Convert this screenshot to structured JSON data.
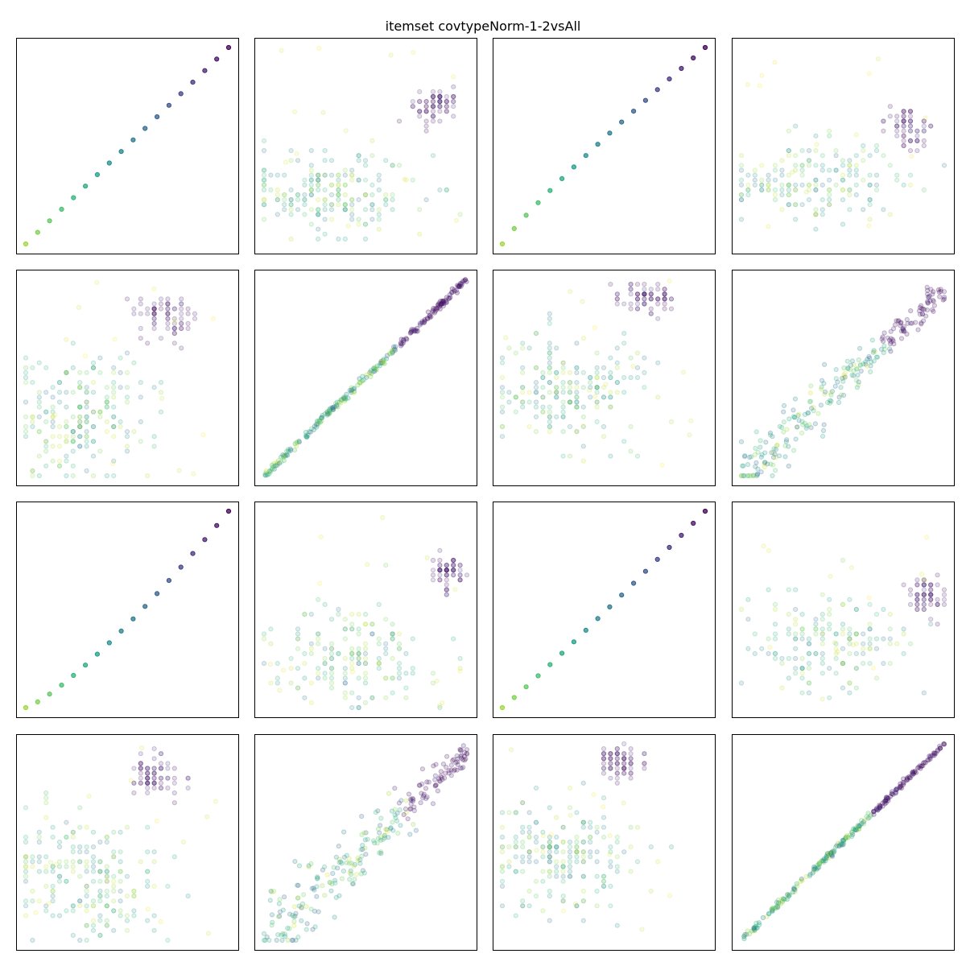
{
  "title": "itemset covtypeNorm-1-2vsAll",
  "chart_data": {
    "type": "scatter",
    "title": "itemset covtypeNorm-1-2vsAll",
    "layout": "4x4 scatter matrix",
    "axes_ticks": "none",
    "colormap": "viridis",
    "point_alpha": 0.15,
    "panels": [
      {
        "id": "r1c1",
        "kind": "diag",
        "x": [
          0,
          1
        ],
        "y": [
          0,
          1
        ],
        "curve": 1.0
      },
      {
        "id": "r1c2",
        "kind": "clusters",
        "clusters": [
          {
            "cx": 0.32,
            "cy": 0.26,
            "sx": 0.22,
            "sy": 0.1,
            "n": 190,
            "cmin": 0.35,
            "cmax": 0.95,
            "mode": "grid"
          },
          {
            "cx": 0.83,
            "cy": 0.71,
            "sx": 0.05,
            "sy": 0.05,
            "n": 70,
            "cmin": 0.0,
            "cmax": 0.15,
            "mode": "grid"
          }
        ]
      },
      {
        "id": "r1c3",
        "kind": "diag",
        "x": [
          0,
          1
        ],
        "y": [
          0,
          1
        ],
        "curve": 0.9
      },
      {
        "id": "r1c4",
        "kind": "clusters",
        "clusters": [
          {
            "cx": 0.36,
            "cy": 0.32,
            "sx": 0.22,
            "sy": 0.1,
            "n": 170,
            "cmin": 0.35,
            "cmax": 0.95,
            "mode": "grid"
          },
          {
            "cx": 0.82,
            "cy": 0.59,
            "sx": 0.06,
            "sy": 0.05,
            "n": 60,
            "cmin": 0.0,
            "cmax": 0.15,
            "mode": "grid"
          }
        ]
      },
      {
        "id": "r2c1",
        "kind": "clusters",
        "clusters": [
          {
            "cx": 0.26,
            "cy": 0.3,
            "sx": 0.17,
            "sy": 0.16,
            "n": 200,
            "cmin": 0.35,
            "cmax": 0.95,
            "mode": "grid"
          },
          {
            "cx": 0.69,
            "cy": 0.81,
            "sx": 0.07,
            "sy": 0.06,
            "n": 70,
            "cmin": 0.0,
            "cmax": 0.15,
            "mode": "grid"
          }
        ]
      },
      {
        "id": "r2c2",
        "kind": "line",
        "spread": 0.01,
        "n": 260
      },
      {
        "id": "r2c3",
        "kind": "clusters",
        "clusters": [
          {
            "cx": 0.32,
            "cy": 0.42,
            "sx": 0.19,
            "sy": 0.14,
            "n": 200,
            "cmin": 0.35,
            "cmax": 0.95,
            "mode": "grid"
          },
          {
            "cx": 0.7,
            "cy": 0.9,
            "sx": 0.07,
            "sy": 0.04,
            "n": 70,
            "cmin": 0.0,
            "cmax": 0.15,
            "mode": "grid"
          }
        ]
      },
      {
        "id": "r2c4",
        "kind": "cloud",
        "spread": 0.06,
        "n": 260
      },
      {
        "id": "r3c1",
        "kind": "diag",
        "x": [
          0,
          1
        ],
        "y": [
          0,
          1
        ],
        "curve": 1.25
      },
      {
        "id": "r3c2",
        "kind": "clusters",
        "clusters": [
          {
            "cx": 0.42,
            "cy": 0.26,
            "sx": 0.2,
            "sy": 0.12,
            "n": 170,
            "cmin": 0.35,
            "cmax": 0.95,
            "mode": "grid"
          },
          {
            "cx": 0.91,
            "cy": 0.7,
            "sx": 0.04,
            "sy": 0.05,
            "n": 60,
            "cmin": 0.0,
            "cmax": 0.15,
            "mode": "grid"
          }
        ]
      },
      {
        "id": "r3c3",
        "kind": "diag",
        "x": [
          0,
          1
        ],
        "y": [
          0,
          1
        ],
        "curve": 1.05
      },
      {
        "id": "r3c4",
        "kind": "clusters",
        "clusters": [
          {
            "cx": 0.42,
            "cy": 0.32,
            "sx": 0.2,
            "sy": 0.12,
            "n": 160,
            "cmin": 0.35,
            "cmax": 0.95,
            "mode": "grid"
          },
          {
            "cx": 0.91,
            "cy": 0.58,
            "sx": 0.04,
            "sy": 0.05,
            "n": 60,
            "cmin": 0.0,
            "cmax": 0.15,
            "mode": "grid"
          }
        ]
      },
      {
        "id": "r4c1",
        "kind": "clusters",
        "clusters": [
          {
            "cx": 0.3,
            "cy": 0.32,
            "sx": 0.19,
            "sy": 0.17,
            "n": 200,
            "cmin": 0.35,
            "cmax": 0.95,
            "mode": "grid"
          },
          {
            "cx": 0.63,
            "cy": 0.84,
            "sx": 0.06,
            "sy": 0.06,
            "n": 70,
            "cmin": 0.0,
            "cmax": 0.15,
            "mode": "grid"
          }
        ]
      },
      {
        "id": "r4c2",
        "kind": "cloud",
        "spread": 0.07,
        "n": 260
      },
      {
        "id": "r4c3",
        "kind": "clusters",
        "clusters": [
          {
            "cx": 0.3,
            "cy": 0.42,
            "sx": 0.19,
            "sy": 0.14,
            "n": 200,
            "cmin": 0.35,
            "cmax": 0.95,
            "mode": "grid"
          },
          {
            "cx": 0.58,
            "cy": 0.9,
            "sx": 0.06,
            "sy": 0.04,
            "n": 70,
            "cmin": 0.0,
            "cmax": 0.15,
            "mode": "grid"
          }
        ]
      },
      {
        "id": "r4c4",
        "kind": "line",
        "spread": 0.008,
        "n": 260
      }
    ]
  }
}
